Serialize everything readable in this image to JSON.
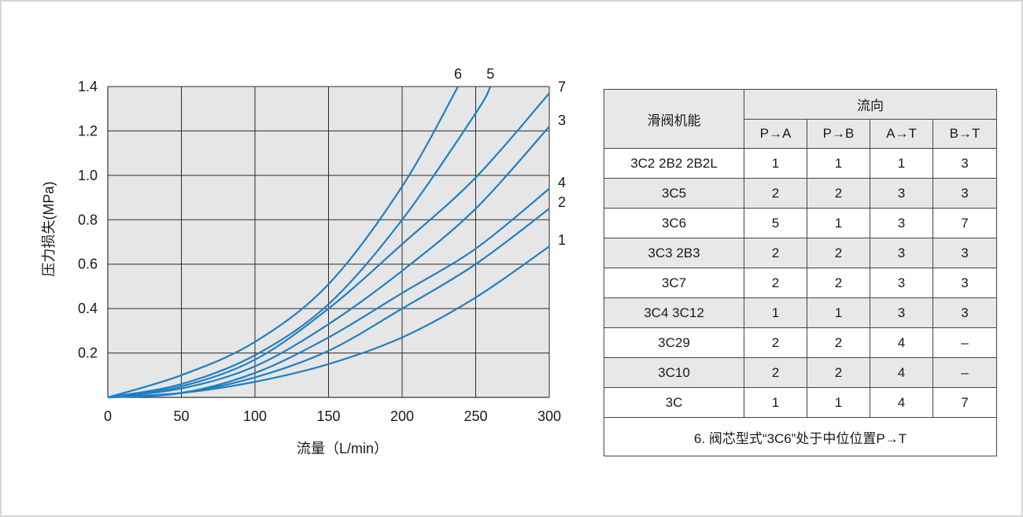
{
  "chart_data": {
    "type": "line",
    "xlabel": "流量（L/min）",
    "ylabel": "压力损失(MPa)",
    "xlim": [
      0,
      300
    ],
    "ylim": [
      0,
      1.4
    ],
    "x_ticks": [
      "0",
      "50",
      "100",
      "150",
      "200",
      "250",
      "300"
    ],
    "y_ticks": [
      "0.2",
      "0.4",
      "0.6",
      "0.8",
      "1.0",
      "1.2",
      "1.4"
    ],
    "grid": true,
    "line_color": "#1f7fc4",
    "series": [
      {
        "name": "1",
        "x": [
          0,
          50,
          100,
          150,
          200,
          250,
          300
        ],
        "y": [
          0,
          0.02,
          0.07,
          0.15,
          0.27,
          0.45,
          0.68
        ]
      },
      {
        "name": "2",
        "x": [
          0,
          50,
          100,
          150,
          200,
          250,
          300
        ],
        "y": [
          0,
          0.02,
          0.09,
          0.21,
          0.4,
          0.6,
          0.85
        ]
      },
      {
        "name": "4",
        "x": [
          0,
          50,
          100,
          150,
          200,
          250,
          300
        ],
        "y": [
          0,
          0.02,
          0.11,
          0.27,
          0.47,
          0.67,
          0.94
        ]
      },
      {
        "name": "3",
        "x": [
          0,
          50,
          100,
          150,
          200,
          250,
          300
        ],
        "y": [
          0,
          0.04,
          0.14,
          0.33,
          0.57,
          0.85,
          1.22
        ]
      },
      {
        "name": "7",
        "x": [
          0,
          50,
          100,
          150,
          200,
          250,
          300
        ],
        "y": [
          0,
          0.05,
          0.17,
          0.4,
          0.69,
          0.99,
          1.37
        ]
      },
      {
        "name": "5",
        "x": [
          0,
          50,
          100,
          150,
          200,
          250,
          260
        ],
        "y": [
          0,
          0.06,
          0.19,
          0.42,
          0.8,
          1.28,
          1.4
        ]
      },
      {
        "name": "6",
        "x": [
          0,
          50,
          100,
          150,
          200,
          238
        ],
        "y": [
          0,
          0.1,
          0.25,
          0.51,
          0.95,
          1.4
        ]
      }
    ]
  },
  "table": {
    "function_header": "滑阀机能",
    "direction_header": "流向",
    "columns": [
      "P→A",
      "P→B",
      "A→T",
      "B→T"
    ],
    "rows": [
      {
        "function": "3C2  2B2  2B2L",
        "values": [
          "1",
          "1",
          "1",
          "3"
        ]
      },
      {
        "function": "3C5",
        "values": [
          "2",
          "2",
          "3",
          "3"
        ]
      },
      {
        "function": "3C6",
        "values": [
          "5",
          "1",
          "3",
          "7"
        ]
      },
      {
        "function": "3C3  2B3",
        "values": [
          "2",
          "2",
          "3",
          "3"
        ]
      },
      {
        "function": "3C7",
        "values": [
          "2",
          "2",
          "3",
          "3"
        ]
      },
      {
        "function": "3C4 3C12",
        "values": [
          "1",
          "1",
          "3",
          "3"
        ]
      },
      {
        "function": "3C29",
        "values": [
          "2",
          "2",
          "4",
          "–"
        ]
      },
      {
        "function": "3C10",
        "values": [
          "2",
          "2",
          "4",
          "–"
        ]
      },
      {
        "function": "3C",
        "values": [
          "1",
          "1",
          "4",
          "7"
        ]
      }
    ],
    "note": "6. 阀芯型式“3C6”处于中位位置P→T"
  }
}
